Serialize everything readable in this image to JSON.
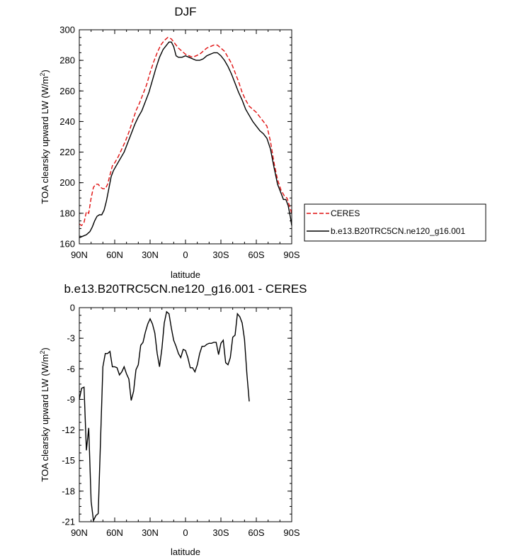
{
  "chart_data": [
    {
      "type": "line",
      "title": "DJF",
      "xlabel": "latitude",
      "ylabel_main": "TOA clearsky upward LW (W/m",
      "ylabel_sup": "2",
      "ylabel_tail": ")",
      "xlim": [
        90,
        -90
      ],
      "ylim": [
        160,
        300
      ],
      "x_ticks": [
        90,
        60,
        30,
        0,
        -30,
        -60,
        -90
      ],
      "x_tick_labels": [
        "90N",
        "60N",
        "30N",
        "0",
        "30S",
        "60S",
        "90S"
      ],
      "y_ticks": [
        160,
        180,
        200,
        220,
        240,
        260,
        280,
        300
      ],
      "y_tick_labels": [
        "160",
        "180",
        "200",
        "220",
        "240",
        "260",
        "280",
        "300"
      ],
      "legend": {
        "placement": "right",
        "entries": [
          "CERES",
          "b.e13.B20TRC5CN.ne120_g16.001"
        ]
      },
      "series": [
        {
          "name": "CERES",
          "color": "#e01010",
          "dash": "dashed",
          "points": [
            [
              90,
              173
            ],
            [
              88,
              172
            ],
            [
              86,
              174
            ],
            [
              84,
              181
            ],
            [
              82,
              180
            ],
            [
              80,
              190
            ],
            [
              78,
              197
            ],
            [
              76,
              199
            ],
            [
              74,
              199
            ],
            [
              72,
              197
            ],
            [
              70,
              196
            ],
            [
              68,
              196
            ],
            [
              66,
              199
            ],
            [
              64,
              205
            ],
            [
              62,
              211
            ],
            [
              60,
              213
            ],
            [
              57,
              217
            ],
            [
              54,
              222
            ],
            [
              51,
              227
            ],
            [
              48,
              233
            ],
            [
              45,
              240
            ],
            [
              42,
              247
            ],
            [
              39,
              252
            ],
            [
              36,
              258
            ],
            [
              33,
              264
            ],
            [
              30,
              272
            ],
            [
              27,
              279
            ],
            [
              24,
              285
            ],
            [
              21,
              290
            ],
            [
              18,
              293
            ],
            [
              15,
              295
            ],
            [
              12,
              294
            ],
            [
              9,
              291
            ],
            [
              6,
              288
            ],
            [
              3,
              286
            ],
            [
              0,
              284
            ],
            [
              -3,
              283
            ],
            [
              -6,
              282
            ],
            [
              -9,
              283
            ],
            [
              -12,
              284
            ],
            [
              -15,
              286
            ],
            [
              -18,
              288
            ],
            [
              -21,
              289
            ],
            [
              -24,
              290
            ],
            [
              -27,
              290
            ],
            [
              -30,
              288
            ],
            [
              -33,
              286
            ],
            [
              -36,
              282
            ],
            [
              -39,
              278
            ],
            [
              -42,
              272
            ],
            [
              -45,
              266
            ],
            [
              -48,
              259
            ],
            [
              -51,
              254
            ],
            [
              -54,
              250
            ],
            [
              -57,
              248
            ],
            [
              -60,
              246
            ],
            [
              -63,
              243
            ],
            [
              -66,
              240
            ],
            [
              -69,
              237
            ],
            [
              -72,
              227
            ],
            [
              -75,
              213
            ],
            [
              -78,
              202
            ],
            [
              -81,
              195
            ],
            [
              -84,
              191
            ],
            [
              -86,
              190
            ],
            [
              -88,
              185
            ],
            [
              -90,
              180
            ]
          ]
        },
        {
          "name": "b.e13.B20TRC5CN.ne120_g16.001",
          "color": "#000000",
          "dash": "solid",
          "points": [
            [
              90,
              164
            ],
            [
              87,
              165
            ],
            [
              84,
              166
            ],
            [
              81,
              168
            ],
            [
              79,
              171
            ],
            [
              77,
              175
            ],
            [
              75,
              178
            ],
            [
              73,
              179
            ],
            [
              71,
              179
            ],
            [
              69,
              182
            ],
            [
              67,
              188
            ],
            [
              65,
              196
            ],
            [
              63,
              204
            ],
            [
              61,
              208
            ],
            [
              58,
              212
            ],
            [
              55,
              216
            ],
            [
              52,
              220
            ],
            [
              49,
              226
            ],
            [
              46,
              232
            ],
            [
              43,
              238
            ],
            [
              40,
              243
            ],
            [
              37,
              247
            ],
            [
              34,
              253
            ],
            [
              31,
              259
            ],
            [
              28,
              267
            ],
            [
              25,
              275
            ],
            [
              22,
              282
            ],
            [
              19,
              287
            ],
            [
              16,
              290
            ],
            [
              14,
              292
            ],
            [
              12,
              292
            ],
            [
              10,
              289
            ],
            [
              8,
              283
            ],
            [
              6,
              282
            ],
            [
              3,
              282
            ],
            [
              0,
              283
            ],
            [
              -3,
              282
            ],
            [
              -6,
              281
            ],
            [
              -9,
              280
            ],
            [
              -12,
              280
            ],
            [
              -15,
              281
            ],
            [
              -18,
              283
            ],
            [
              -21,
              284
            ],
            [
              -24,
              285
            ],
            [
              -27,
              285
            ],
            [
              -30,
              283
            ],
            [
              -33,
              280
            ],
            [
              -36,
              276
            ],
            [
              -39,
              271
            ],
            [
              -42,
              265
            ],
            [
              -45,
              259
            ],
            [
              -48,
              254
            ],
            [
              -51,
              248
            ],
            [
              -54,
              244
            ],
            [
              -57,
              240
            ],
            [
              -60,
              237
            ],
            [
              -63,
              234
            ],
            [
              -66,
              232
            ],
            [
              -69,
              229
            ],
            [
              -72,
              222
            ],
            [
              -75,
              210
            ],
            [
              -78,
              199
            ],
            [
              -81,
              193
            ],
            [
              -83,
              189
            ],
            [
              -85,
              189
            ],
            [
              -87,
              185
            ],
            [
              -89,
              177
            ],
            [
              -90,
              172
            ]
          ]
        }
      ]
    },
    {
      "type": "line",
      "title": "b.e13.B20TRC5CN.ne120_g16.001 - CERES",
      "xlabel": "latitude",
      "ylabel_main": "TOA clearsky upward LW (W/m",
      "ylabel_sup": "2",
      "ylabel_tail": ")",
      "xlim": [
        90,
        -90
      ],
      "ylim": [
        -21,
        0
      ],
      "x_ticks": [
        90,
        60,
        30,
        0,
        -30,
        -60,
        -90
      ],
      "x_tick_labels": [
        "90N",
        "60N",
        "30N",
        "0",
        "30S",
        "60S",
        "90S"
      ],
      "y_ticks": [
        -21,
        -18,
        -15,
        -12,
        -9,
        -6,
        -3,
        0
      ],
      "y_tick_labels": [
        "-21",
        "-18",
        "-15",
        "-12",
        "-9",
        "-6",
        "-3",
        "0"
      ],
      "series": [
        {
          "name": "",
          "color": "#000000",
          "dash": "solid",
          "points": [
            [
              90,
              -9.0
            ],
            [
              88,
              -7.9
            ],
            [
              86,
              -7.8
            ],
            [
              84,
              -14.0
            ],
            [
              82,
              -11.8
            ],
            [
              80,
              -19.0
            ],
            [
              78,
              -20.9
            ],
            [
              76,
              -20.4
            ],
            [
              74,
              -20.2
            ],
            [
              72,
              -13.0
            ],
            [
              70,
              -5.8
            ],
            [
              68,
              -4.5
            ],
            [
              66,
              -4.5
            ],
            [
              64,
              -4.3
            ],
            [
              62,
              -5.8
            ],
            [
              60,
              -5.8
            ],
            [
              58,
              -5.9
            ],
            [
              56,
              -6.6
            ],
            [
              54,
              -6.3
            ],
            [
              52,
              -5.8
            ],
            [
              50,
              -6.5
            ],
            [
              48,
              -7.0
            ],
            [
              46,
              -9.1
            ],
            [
              44,
              -8.2
            ],
            [
              42,
              -6.1
            ],
            [
              40,
              -5.6
            ],
            [
              38,
              -3.7
            ],
            [
              36,
              -3.4
            ],
            [
              34,
              -2.4
            ],
            [
              32,
              -1.6
            ],
            [
              30,
              -1.1
            ],
            [
              28,
              -1.6
            ],
            [
              26,
              -2.5
            ],
            [
              24,
              -4.5
            ],
            [
              22,
              -5.8
            ],
            [
              20,
              -4.0
            ],
            [
              18,
              -1.5
            ],
            [
              16,
              -0.4
            ],
            [
              14,
              -0.6
            ],
            [
              12,
              -2.0
            ],
            [
              10,
              -3.2
            ],
            [
              8,
              -3.8
            ],
            [
              6,
              -4.5
            ],
            [
              4,
              -4.9
            ],
            [
              2,
              -4.1
            ],
            [
              0,
              -4.2
            ],
            [
              -2,
              -4.9
            ],
            [
              -4,
              -5.9
            ],
            [
              -6,
              -5.9
            ],
            [
              -8,
              -6.3
            ],
            [
              -10,
              -5.6
            ],
            [
              -12,
              -4.5
            ],
            [
              -14,
              -3.8
            ],
            [
              -16,
              -3.8
            ],
            [
              -18,
              -3.6
            ],
            [
              -20,
              -3.5
            ],
            [
              -22,
              -3.5
            ],
            [
              -24,
              -3.4
            ],
            [
              -26,
              -3.4
            ],
            [
              -28,
              -4.6
            ],
            [
              -30,
              -3.5
            ],
            [
              -32,
              -3.2
            ],
            [
              -34,
              -5.4
            ],
            [
              -36,
              -5.6
            ],
            [
              -38,
              -4.9
            ],
            [
              -40,
              -2.9
            ],
            [
              -42,
              -2.7
            ],
            [
              -44,
              -0.6
            ],
            [
              -46,
              -0.9
            ],
            [
              -48,
              -1.5
            ],
            [
              -50,
              -3.1
            ],
            [
              -52,
              -6.5
            ],
            [
              -54,
              -9.2
            ]
          ]
        }
      ]
    }
  ]
}
